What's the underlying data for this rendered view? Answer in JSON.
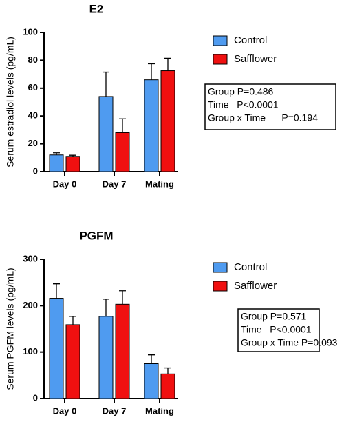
{
  "chart_data": [
    {
      "type": "bar",
      "title": "E2",
      "y_label": "Serum estradiol levels (pg/mL)",
      "categories": [
        "Day 0",
        "Day 7",
        "Mating"
      ],
      "series": [
        {
          "name": "Control",
          "color": "#4f9bf0",
          "values": [
            12,
            54,
            66
          ],
          "errors": [
            1.5,
            17.5,
            11.5
          ]
        },
        {
          "name": "Safflower",
          "color": "#f01010",
          "values": [
            11,
            28,
            72.5
          ],
          "errors": [
            0.8,
            10,
            9
          ]
        }
      ],
      "ylim": [
        0,
        100
      ],
      "yticks": [
        0,
        20,
        40,
        60,
        80,
        100
      ],
      "annotations": [
        "Group P=0.486",
        "Time   P<0.0001",
        "Group x Time      P=0.194"
      ]
    },
    {
      "type": "bar",
      "title": "PGFM",
      "y_label": "Serum PGFM levels (pg/mL)",
      "categories": [
        "Day 0",
        "Day 7",
        "Mating"
      ],
      "series": [
        {
          "name": "Control",
          "color": "#4f9bf0",
          "values": [
            216,
            177,
            75
          ],
          "errors": [
            31,
            37,
            19
          ]
        },
        {
          "name": "Safflower",
          "color": "#f01010",
          "values": [
            159,
            203,
            53
          ],
          "errors": [
            18,
            29,
            13
          ]
        }
      ],
      "ylim": [
        0,
        300
      ],
      "yticks": [
        0,
        100,
        200,
        300
      ],
      "annotations": [
        "Group P=0.571",
        "Time   P<0.0001",
        "Group x Time P=0.093"
      ]
    }
  ]
}
